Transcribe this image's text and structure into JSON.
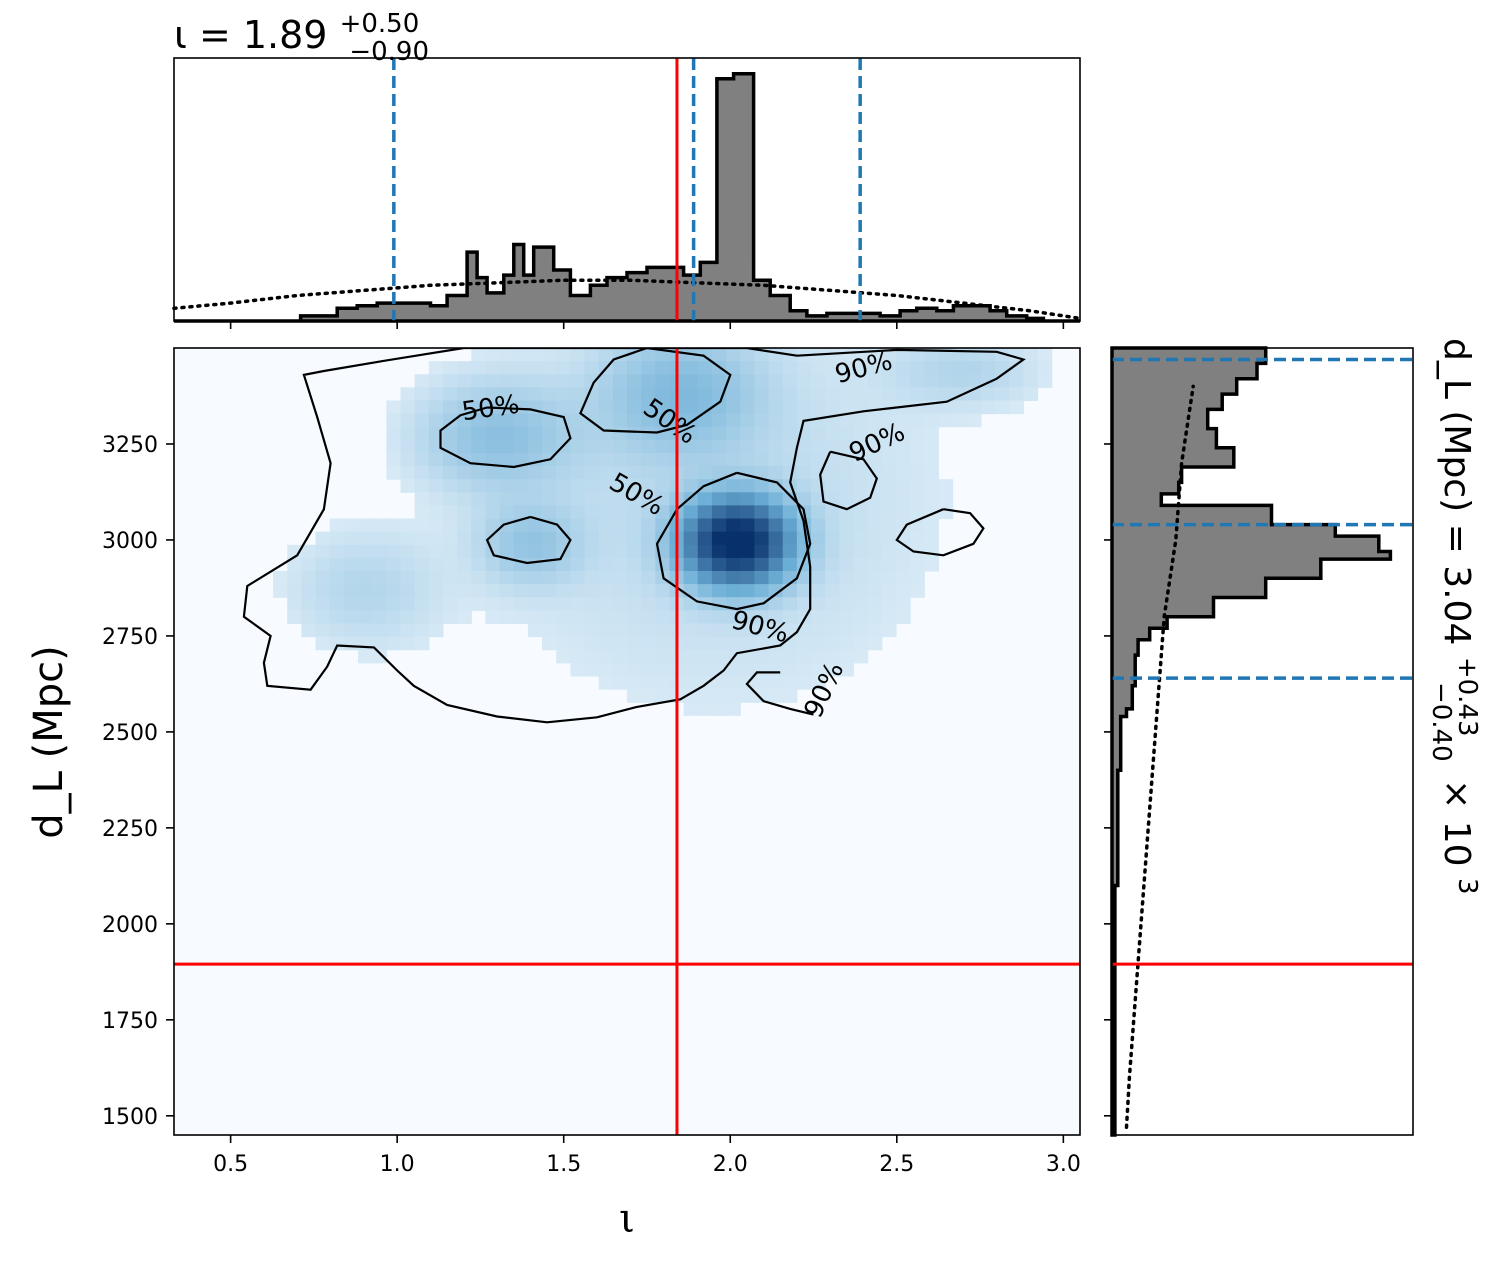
{
  "chart_data": [
    {
      "panel": "top-marginal",
      "type": "histogram",
      "title_main": "ι = 1.89",
      "title_sup": "+0.50",
      "title_sub": "−0.90",
      "xlim": [
        0.33,
        3.05
      ],
      "x_ticks": [
        0.5,
        1.0,
        1.5,
        2.0,
        2.5,
        3.0
      ],
      "y_ticks": [],
      "bins": [
        {
          "x0": 0.33,
          "x1": 0.71,
          "h": 0.0
        },
        {
          "x0": 0.71,
          "x1": 0.76,
          "h": 0.02
        },
        {
          "x0": 0.76,
          "x1": 0.82,
          "h": 0.02
        },
        {
          "x0": 0.82,
          "x1": 0.88,
          "h": 0.05
        },
        {
          "x0": 0.88,
          "x1": 0.94,
          "h": 0.06
        },
        {
          "x0": 0.94,
          "x1": 1.1,
          "h": 0.07
        },
        {
          "x0": 1.1,
          "x1": 1.15,
          "h": 0.06
        },
        {
          "x0": 1.15,
          "x1": 1.21,
          "h": 0.1
        },
        {
          "x0": 1.21,
          "x1": 1.24,
          "h": 0.27
        },
        {
          "x0": 1.24,
          "x1": 1.27,
          "h": 0.17
        },
        {
          "x0": 1.27,
          "x1": 1.32,
          "h": 0.11
        },
        {
          "x0": 1.32,
          "x1": 1.35,
          "h": 0.18
        },
        {
          "x0": 1.35,
          "x1": 1.38,
          "h": 0.3
        },
        {
          "x0": 1.38,
          "x1": 1.41,
          "h": 0.18
        },
        {
          "x0": 1.41,
          "x1": 1.47,
          "h": 0.29
        },
        {
          "x0": 1.47,
          "x1": 1.52,
          "h": 0.2
        },
        {
          "x0": 1.52,
          "x1": 1.58,
          "h": 0.1
        },
        {
          "x0": 1.58,
          "x1": 1.63,
          "h": 0.14
        },
        {
          "x0": 1.63,
          "x1": 1.69,
          "h": 0.17
        },
        {
          "x0": 1.69,
          "x1": 1.75,
          "h": 0.19
        },
        {
          "x0": 1.75,
          "x1": 1.86,
          "h": 0.21
        },
        {
          "x0": 1.86,
          "x1": 1.91,
          "h": 0.18
        },
        {
          "x0": 1.91,
          "x1": 1.96,
          "h": 0.23
        },
        {
          "x0": 1.96,
          "x1": 2.01,
          "h": 0.95
        },
        {
          "x0": 2.01,
          "x1": 2.07,
          "h": 0.97
        },
        {
          "x0": 2.07,
          "x1": 2.12,
          "h": 0.16
        },
        {
          "x0": 2.12,
          "x1": 2.18,
          "h": 0.1
        },
        {
          "x0": 2.18,
          "x1": 2.23,
          "h": 0.04
        },
        {
          "x0": 2.23,
          "x1": 2.29,
          "h": 0.02
        },
        {
          "x0": 2.29,
          "x1": 2.45,
          "h": 0.03
        },
        {
          "x0": 2.45,
          "x1": 2.51,
          "h": 0.02
        },
        {
          "x0": 2.51,
          "x1": 2.56,
          "h": 0.04
        },
        {
          "x0": 2.56,
          "x1": 2.62,
          "h": 0.05
        },
        {
          "x0": 2.62,
          "x1": 2.67,
          "h": 0.04
        },
        {
          "x0": 2.67,
          "x1": 2.78,
          "h": 0.06
        },
        {
          "x0": 2.78,
          "x1": 2.83,
          "h": 0.04
        },
        {
          "x0": 2.83,
          "x1": 2.89,
          "h": 0.02
        },
        {
          "x0": 2.89,
          "x1": 2.94,
          "h": 0.01
        },
        {
          "x0": 2.94,
          "x1": 3.05,
          "h": 0.0
        }
      ],
      "prior_dotted": {
        "x": [
          0.33,
          0.5,
          0.7,
          0.9,
          1.1,
          1.3,
          1.5,
          1.7,
          1.9,
          2.1,
          2.3,
          2.5,
          2.7,
          2.9,
          3.05
        ],
        "h": [
          0.05,
          0.07,
          0.1,
          0.12,
          0.14,
          0.15,
          0.16,
          0.16,
          0.15,
          0.14,
          0.12,
          0.1,
          0.07,
          0.04,
          0.01
        ]
      },
      "quantile_lines_dashed": [
        0.99,
        1.89,
        2.39
      ],
      "true_value_line": 1.84
    },
    {
      "panel": "joint",
      "type": "heatmap",
      "xlabel": "ι",
      "ylabel": "d_L (Mpc)",
      "xlim": [
        0.33,
        3.05
      ],
      "ylim": [
        1450,
        3500
      ],
      "x_ticks": [
        0.5,
        1.0,
        1.5,
        2.0,
        2.5,
        3.0
      ],
      "y_ticks": [
        1500,
        1750,
        2000,
        2250,
        2500,
        2750,
        3000,
        3250
      ],
      "x_tick_labels": [
        "0.5",
        "1.0",
        "1.5",
        "2.0",
        "2.5",
        "3.0"
      ],
      "y_tick_labels": [
        "1500",
        "1750",
        "2000",
        "2250",
        "2500",
        "2750",
        "3000",
        "3250"
      ],
      "density_peaks": [
        {
          "x": 2.02,
          "y": 2995,
          "sx": 0.1,
          "sy": 70,
          "amp": 1.0
        },
        {
          "x": 1.3,
          "y": 3270,
          "sx": 0.15,
          "sy": 90,
          "amp": 0.12
        },
        {
          "x": 1.4,
          "y": 2990,
          "sx": 0.1,
          "sy": 70,
          "amp": 0.1
        },
        {
          "x": 1.85,
          "y": 3380,
          "sx": 0.15,
          "sy": 100,
          "amp": 0.14
        },
        {
          "x": 0.9,
          "y": 2870,
          "sx": 0.15,
          "sy": 100,
          "amp": 0.05
        },
        {
          "x": 2.7,
          "y": 3440,
          "sx": 0.15,
          "sy": 60,
          "amp": 0.05
        },
        {
          "x": 1.95,
          "y": 3100,
          "sx": 0.45,
          "sy": 350,
          "amp": 0.04
        }
      ],
      "contour_labels": [
        {
          "text": "50%",
          "x": 1.28,
          "y": 3345,
          "angle": 8
        },
        {
          "text": "50%",
          "x": 1.82,
          "y": 3310,
          "angle": -35
        },
        {
          "text": "50%",
          "x": 1.72,
          "y": 3120,
          "angle": -30
        },
        {
          "text": "90%",
          "x": 2.4,
          "y": 3450,
          "angle": 15
        },
        {
          "text": "90%",
          "x": 2.44,
          "y": 3255,
          "angle": 25
        },
        {
          "text": "90%",
          "x": 2.09,
          "y": 2775,
          "angle": -15
        },
        {
          "text": "90%",
          "x": 2.28,
          "y": 2610,
          "angle": 65
        }
      ],
      "contours": [
        {
          "level": "90%",
          "points": [
            [
              0.78,
              3440
            ],
            [
              0.95,
              3465
            ],
            [
              1.2,
              3500
            ],
            [
              1.6,
              3500
            ],
            [
              2.05,
              3500
            ],
            [
              2.2,
              3480
            ],
            [
              2.5,
              3495
            ],
            [
              2.8,
              3490
            ],
            [
              2.88,
              3470
            ],
            [
              2.8,
              3420
            ],
            [
              2.65,
              3360
            ],
            [
              2.4,
              3335
            ],
            [
              2.22,
              3310
            ],
            [
              2.2,
              3240
            ],
            [
              2.18,
              3150
            ],
            [
              2.22,
              3050
            ],
            [
              2.24,
              2930
            ],
            [
              2.24,
              2820
            ],
            [
              2.2,
              2760
            ],
            [
              2.15,
              2725
            ],
            [
              2.02,
              2705
            ],
            [
              1.98,
              2660
            ],
            [
              1.92,
              2620
            ],
            [
              1.85,
              2585
            ],
            [
              1.72,
              2565
            ],
            [
              1.6,
              2538
            ],
            [
              1.45,
              2525
            ],
            [
              1.3,
              2540
            ],
            [
              1.15,
              2570
            ],
            [
              1.05,
              2620
            ],
            [
              1.0,
              2660
            ],
            [
              0.93,
              2720
            ],
            [
              0.82,
              2725
            ],
            [
              0.79,
              2670
            ],
            [
              0.74,
              2610
            ],
            [
              0.61,
              2620
            ],
            [
              0.6,
              2680
            ],
            [
              0.62,
              2750
            ],
            [
              0.54,
              2800
            ],
            [
              0.55,
              2880
            ],
            [
              0.7,
              2960
            ],
            [
              0.78,
              3080
            ],
            [
              0.8,
              3200
            ],
            [
              0.76,
              3320
            ],
            [
              0.72,
              3430
            ],
            [
              0.78,
              3440
            ]
          ]
        },
        {
          "level": "50%",
          "points": [
            [
              1.27,
              3345
            ],
            [
              1.4,
              3340
            ],
            [
              1.5,
              3320
            ],
            [
              1.52,
              3265
            ],
            [
              1.46,
              3210
            ],
            [
              1.35,
              3190
            ],
            [
              1.22,
              3200
            ],
            [
              1.13,
              3240
            ],
            [
              1.13,
              3285
            ],
            [
              1.19,
              3325
            ],
            [
              1.27,
              3345
            ]
          ]
        },
        {
          "level": "50%",
          "points": [
            [
              1.4,
              3060
            ],
            [
              1.48,
              3040
            ],
            [
              1.52,
              3000
            ],
            [
              1.49,
              2950
            ],
            [
              1.39,
              2940
            ],
            [
              1.29,
              2960
            ],
            [
              1.27,
              3000
            ],
            [
              1.32,
              3040
            ],
            [
              1.4,
              3060
            ]
          ]
        },
        {
          "level": "50%",
          "points": [
            [
              1.75,
              3500
            ],
            [
              1.92,
              3480
            ],
            [
              2.0,
              3430
            ],
            [
              1.97,
              3360
            ],
            [
              1.87,
              3300
            ],
            [
              1.78,
              3280
            ],
            [
              1.62,
              3285
            ],
            [
              1.55,
              3330
            ],
            [
              1.59,
              3410
            ],
            [
              1.65,
              3470
            ],
            [
              1.75,
              3500
            ]
          ]
        },
        {
          "level": "50%",
          "points": [
            [
              2.02,
              3175
            ],
            [
              2.14,
              3150
            ],
            [
              2.22,
              3080
            ],
            [
              2.24,
              2990
            ],
            [
              2.2,
              2900
            ],
            [
              2.1,
              2835
            ],
            [
              2.02,
              2820
            ],
            [
              1.9,
              2840
            ],
            [
              1.8,
              2900
            ],
            [
              1.78,
              2990
            ],
            [
              1.84,
              3080
            ],
            [
              1.92,
              3140
            ],
            [
              2.02,
              3175
            ]
          ]
        },
        {
          "level": "90%",
          "points": [
            [
              2.3,
              3230
            ],
            [
              2.4,
              3210
            ],
            [
              2.44,
              3160
            ],
            [
              2.42,
              3110
            ],
            [
              2.35,
              3080
            ],
            [
              2.28,
              3100
            ],
            [
              2.27,
              3170
            ],
            [
              2.3,
              3230
            ]
          ]
        },
        {
          "level": "90%",
          "points": [
            [
              2.64,
              3080
            ],
            [
              2.72,
              3070
            ],
            [
              2.76,
              3030
            ],
            [
              2.73,
              2990
            ],
            [
              2.64,
              2960
            ],
            [
              2.55,
              2970
            ],
            [
              2.5,
              3000
            ],
            [
              2.53,
              3040
            ],
            [
              2.64,
              3080
            ]
          ]
        },
        {
          "level": "90%",
          "points": [
            [
              2.15,
              2655
            ],
            [
              2.08,
              2655
            ],
            [
              2.05,
              2625
            ],
            [
              2.1,
              2580
            ],
            [
              2.18,
              2560
            ],
            [
              2.25,
              2545
            ]
          ]
        }
      ],
      "true_value_lines": {
        "x": 1.84,
        "y": 1895
      }
    },
    {
      "panel": "right-marginal",
      "type": "histogram",
      "orientation": "horizontal",
      "side_label_main": "d_L (Mpc) = 3.04",
      "side_label_sup": "+0.43",
      "side_label_sub": "−0.40",
      "side_label_tail": "× 10",
      "side_label_exp": "3",
      "ylim": [
        1450,
        3500
      ],
      "y_ticks": [
        1500,
        1750,
        2000,
        2250,
        2500,
        2750,
        3000,
        3250
      ],
      "x_ticks": [],
      "bins": [
        {
          "y0": 1450,
          "y1": 2100,
          "w": 0.01
        },
        {
          "y0": 2100,
          "y1": 2400,
          "w": 0.02
        },
        {
          "y0": 2400,
          "y1": 2540,
          "w": 0.03
        },
        {
          "y0": 2540,
          "y1": 2560,
          "w": 0.05
        },
        {
          "y0": 2560,
          "y1": 2620,
          "w": 0.07
        },
        {
          "y0": 2620,
          "y1": 2700,
          "w": 0.08
        },
        {
          "y0": 2700,
          "y1": 2740,
          "w": 0.09
        },
        {
          "y0": 2740,
          "y1": 2770,
          "w": 0.13
        },
        {
          "y0": 2770,
          "y1": 2800,
          "w": 0.19
        },
        {
          "y0": 2800,
          "y1": 2850,
          "w": 0.35
        },
        {
          "y0": 2850,
          "y1": 2900,
          "w": 0.53
        },
        {
          "y0": 2900,
          "y1": 2950,
          "w": 0.72
        },
        {
          "y0": 2950,
          "y1": 2970,
          "w": 0.96
        },
        {
          "y0": 2970,
          "y1": 3010,
          "w": 0.92
        },
        {
          "y0": 3010,
          "y1": 3040,
          "w": 0.77
        },
        {
          "y0": 3040,
          "y1": 3090,
          "w": 0.55
        },
        {
          "y0": 3090,
          "y1": 3120,
          "w": 0.17
        },
        {
          "y0": 3120,
          "y1": 3150,
          "w": 0.23
        },
        {
          "y0": 3150,
          "y1": 3190,
          "w": 0.24
        },
        {
          "y0": 3190,
          "y1": 3240,
          "w": 0.42
        },
        {
          "y0": 3240,
          "y1": 3290,
          "w": 0.36
        },
        {
          "y0": 3290,
          "y1": 3340,
          "w": 0.33
        },
        {
          "y0": 3340,
          "y1": 3380,
          "w": 0.38
        },
        {
          "y0": 3380,
          "y1": 3420,
          "w": 0.43
        },
        {
          "y0": 3420,
          "y1": 3460,
          "w": 0.5
        },
        {
          "y0": 3460,
          "y1": 3500,
          "w": 0.53
        }
      ],
      "prior_dotted": {
        "y": [
          1470,
          1600,
          1800,
          2000,
          2200,
          2400,
          2600,
          2800,
          3000,
          3200,
          3400
        ],
        "w": [
          0.05,
          0.06,
          0.08,
          0.1,
          0.12,
          0.14,
          0.16,
          0.18,
          0.22,
          0.24,
          0.28
        ]
      },
      "quantile_lines_dashed": [
        2640,
        3040,
        3470
      ],
      "true_value_line": 1895
    }
  ],
  "colors": {
    "hist_fill": "#808080",
    "quantile_line": "#1f77b4",
    "true_line": "#ff0000",
    "density_low": "#f7fbff",
    "density_high": "#08306b"
  }
}
